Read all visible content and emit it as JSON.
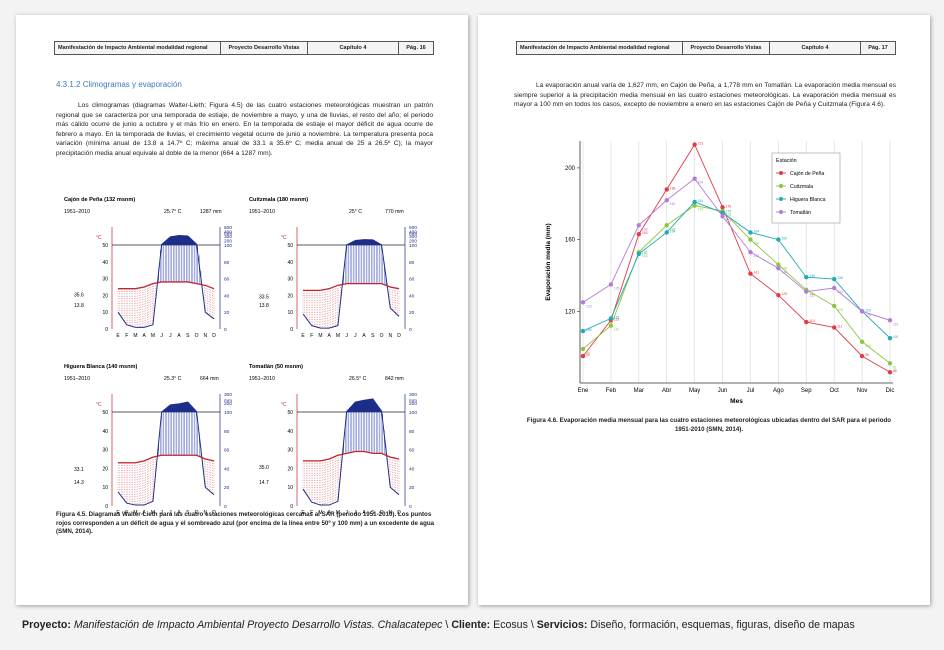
{
  "header": {
    "left": "Manifestación de Impacto Ambiental modalidad regional",
    "project": "Proyecto Desarrollo Vistas",
    "chapter": "Capítulo 4",
    "page_left": "Pág. 16",
    "page_right": "Pág. 17"
  },
  "left_page": {
    "section_title": "4.3.1.2   Climogramas y evaporación",
    "paragraph": "Los climogramas (diagramas Walter-Lieth; Figura 4.5) de las cuatro estaciones meteorológicas muestran un patrón regional que se caracteriza por una temporada de estiaje, de noviembre a mayo, y una de lluvias, el resto del año; el periodo más cálido ocurre de junio a octubre y el más frío en enero. En la temporada de estiaje el mayor déficit de agua ocurre de febrero a mayo. En la temporada de lluvias, el crecimiento vegetal ocurre de junio a noviembre. La temperatura presenta poca variación (mínima anual de 13.8 a 14.7º C; máxima anual de 33.1 a 35.6º C; media anual de 25 a 26.5º C); la mayor precipitación media anual equivale al doble de la menor (664 a 1287 mm).",
    "caption": "Figura 4.5. Diagramas Walter-Lieth para las cuatro estaciones meteorológicas cercanas al SAR (periodo 1951-2010). Los puntos rojos corresponden a un déficit de agua y el sombreado azul (por encima de la línea entre 50º y 100 mm) a un excedente de agua (SMN, 2014)."
  },
  "right_page": {
    "paragraph": "La evaporación anual varía de 1,627 mm, en Cajón de Peña, a 1,778 mm en Tomatlán. La evaporación media mensual es siempre superior a la precipitación media mensual en las cuatro estaciones meteorológicas. La evaporación media mensual es mayor a 100 mm en todos los casos, excepto de noviembre a enero en las estaciones Cajón de Peña y Cuitzmala (Figura 4.6).",
    "caption": "Figura 4.6. Evaporación media mensual para las cuatro estaciones meteorológicas ubicadas dentro del SAR para el periodo 1951-2010 (SMN, 2014)."
  },
  "footer": {
    "project_label": "Proyecto:",
    "project_value": "Manifestación de Impacto Ambiental Proyecto Desarrollo Vistas. Chalacatepec",
    "client_label": "Cliente:",
    "client_value": "Ecosus",
    "services_label": "Servicios:",
    "services_value": "Diseño, formación, esquemas, figuras, diseño de mapas",
    "sep": "\\"
  },
  "chart_data": [
    {
      "type": "line",
      "xlabel": "Mes",
      "ylabel": "Evaporación media (mm)",
      "ylim": [
        80,
        215
      ],
      "yticks": [
        120,
        160,
        200
      ],
      "categories": [
        "Ene",
        "Feb",
        "Mar",
        "Abr",
        "May",
        "Jun",
        "Jul",
        "Ago",
        "Sep",
        "Oct",
        "Nov",
        "Dic"
      ],
      "legend_title": "Estación",
      "legend_position": "top-right",
      "grid": "vertical",
      "series": [
        {
          "name": "Cajón de Peña",
          "color": "#e03c48",
          "values": [
            95,
            115,
            163,
            188,
            213,
            178,
            141,
            129,
            114,
            111,
            95,
            86
          ]
        },
        {
          "name": "Cuitzmala",
          "color": "#8cc63f",
          "values": [
            99,
            112,
            153,
            168,
            179,
            176,
            160,
            146,
            132,
            123,
            103,
            91
          ]
        },
        {
          "name": "Higuera Blanca",
          "color": "#22aab4",
          "values": [
            109,
            116,
            152,
            164,
            181,
            175,
            164,
            160,
            139,
            138,
            120,
            105
          ]
        },
        {
          "name": "Tomatlán",
          "color": "#b57bd6",
          "values": [
            125,
            135,
            168,
            182,
            194,
            173,
            153,
            144,
            131,
            133,
            120,
            115
          ]
        }
      ]
    },
    {
      "type": "area",
      "title": "Cajón de Peña (132 msnm)",
      "period": "1951–2010",
      "mean_temp": "25.7° C",
      "annual_precip": "1287 mm",
      "t_max_label": "35.6",
      "t_min_label": "13.8",
      "left_ticks": [
        "50",
        "40",
        "30",
        "20",
        "10",
        "0"
      ],
      "right_ticks": [
        "500",
        "400",
        "300",
        "200",
        "100",
        "80",
        "60",
        "40",
        "20",
        "0"
      ],
      "months": [
        "E",
        "F",
        "M",
        "A",
        "M",
        "J",
        "J",
        "A",
        "S",
        "O",
        "N",
        "D"
      ],
      "temperature": [
        24,
        24,
        24,
        25,
        27,
        28,
        28,
        28,
        28,
        27,
        26,
        24
      ],
      "precip_mm": [
        20,
        5,
        2,
        2,
        5,
        110,
        280,
        310,
        300,
        120,
        20,
        12
      ]
    },
    {
      "type": "area",
      "title": "Cuitzmala (180 msnm)",
      "period": "1951–2010",
      "mean_temp": "25° C",
      "annual_precip": "770 mm",
      "t_max_label": "33.5",
      "t_min_label": "13.8",
      "left_ticks": [
        "50",
        "40",
        "30",
        "20",
        "10",
        "0"
      ],
      "right_ticks": [
        "500",
        "400",
        "300",
        "200",
        "100",
        "80",
        "60",
        "40",
        "20",
        "0"
      ],
      "months": [
        "E",
        "F",
        "M",
        "A",
        "M",
        "J",
        "J",
        "A",
        "S",
        "O",
        "N",
        "D"
      ],
      "temperature": [
        23,
        23,
        23,
        24,
        26,
        27,
        27,
        27,
        27,
        27,
        25,
        24
      ],
      "precip_mm": [
        18,
        4,
        1,
        1,
        4,
        100,
        200,
        220,
        215,
        105,
        25,
        15
      ]
    },
    {
      "type": "area",
      "title": "Higuera Blanca (140 msnm)",
      "period": "1951–2010",
      "mean_temp": "25.3° C",
      "annual_precip": "664 mm",
      "t_max_label": "33.1",
      "t_min_label": "14.3",
      "left_ticks": [
        "50",
        "40",
        "30",
        "20",
        "10",
        "0"
      ],
      "right_ticks": [
        "300",
        "200",
        "100",
        "80",
        "60",
        "40",
        "20",
        "0"
      ],
      "months": [
        "E",
        "F",
        "M",
        "A",
        "M",
        "J",
        "J",
        "A",
        "S",
        "O",
        "N",
        "D"
      ],
      "temperature": [
        23,
        23,
        23,
        24,
        26,
        27,
        27,
        27,
        27,
        27,
        25,
        24
      ],
      "precip_mm": [
        15,
        3,
        1,
        1,
        5,
        100,
        180,
        190,
        210,
        105,
        20,
        12
      ]
    },
    {
      "type": "area",
      "title": "Tomatlán (50 msnm)",
      "period": "1951–2010",
      "mean_temp": "26.5° C",
      "annual_precip": "842 mm",
      "t_max_label": "35.0",
      "t_min_label": "14.7",
      "left_ticks": [
        "50",
        "40",
        "30",
        "20",
        "10",
        "0"
      ],
      "right_ticks": [
        "300",
        "200",
        "100",
        "80",
        "60",
        "40",
        "20",
        "0"
      ],
      "months": [
        "E",
        "F",
        "M",
        "A",
        "M",
        "J",
        "J",
        "A",
        "S",
        "O",
        "N",
        "D"
      ],
      "temperature": [
        24,
        24,
        24,
        25,
        27,
        28,
        29,
        29,
        28,
        28,
        26,
        25
      ],
      "precip_mm": [
        18,
        4,
        1,
        1,
        5,
        105,
        210,
        230,
        245,
        110,
        20,
        12
      ]
    }
  ]
}
